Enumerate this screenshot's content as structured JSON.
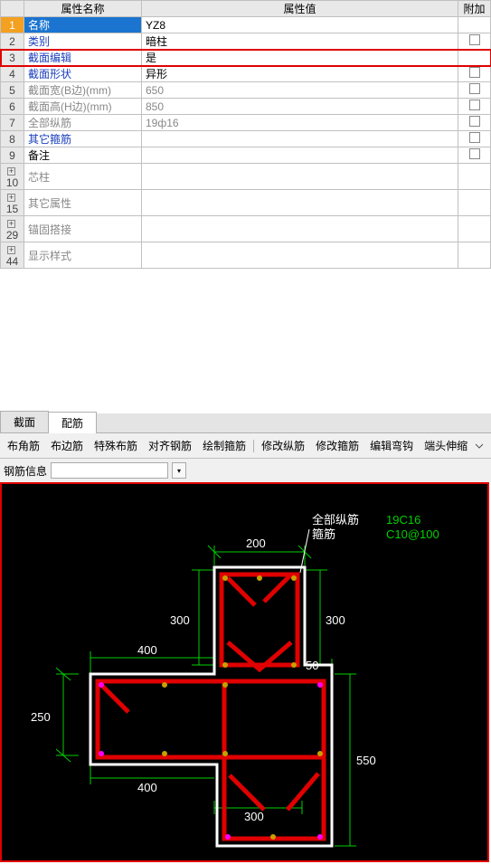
{
  "headers": {
    "name": "属性名称",
    "value": "属性值",
    "attach": "附加"
  },
  "rows": [
    {
      "n": "1",
      "sel": true,
      "name": "名称",
      "val": "YZ8",
      "att": "",
      "cls": ""
    },
    {
      "n": "2",
      "name": "类别",
      "val": "暗柱",
      "att": "chk",
      "cls": "bluefg"
    },
    {
      "n": "3",
      "name": "截面编辑",
      "val": "是",
      "att": "",
      "cls": "bluefg",
      "red": true
    },
    {
      "n": "4",
      "name": "截面形状",
      "val": "异形",
      "att": "chk",
      "cls": "bluefg"
    },
    {
      "n": "5",
      "name": "截面宽(B边)(mm)",
      "val": "650",
      "att": "chk",
      "cls": "grayfg"
    },
    {
      "n": "6",
      "name": "截面高(H边)(mm)",
      "val": "850",
      "att": "chk",
      "cls": "grayfg"
    },
    {
      "n": "7",
      "name": "全部纵筋",
      "val": "19ф16",
      "att": "chk",
      "cls": "grayfg"
    },
    {
      "n": "8",
      "name": "其它箍筋",
      "val": "",
      "att": "chk",
      "cls": "bluefg"
    },
    {
      "n": "9",
      "name": "备注",
      "val": "",
      "att": "chk",
      "cls": ""
    },
    {
      "n": "10",
      "exp": "+",
      "name": "芯柱",
      "val": "",
      "att": "",
      "cls": "grayfg"
    },
    {
      "n": "15",
      "exp": "+",
      "name": "其它属性",
      "val": "",
      "att": "",
      "cls": "grayfg"
    },
    {
      "n": "29",
      "exp": "+",
      "name": "锚固搭接",
      "val": "",
      "att": "",
      "cls": "grayfg"
    },
    {
      "n": "44",
      "exp": "+",
      "name": "显示样式",
      "val": "",
      "att": "",
      "cls": "grayfg"
    }
  ],
  "tabs": {
    "section": "截面",
    "rebar": "配筋"
  },
  "toolbar": {
    "t1": "布角筋",
    "t2": "布边筋",
    "t3": "特殊布筋",
    "t4": "对齐钢筋",
    "t5": "绘制箍筋",
    "t6": "修改纵筋",
    "t7": "修改箍筋",
    "t8": "编辑弯钩",
    "t9": "端头伸缩"
  },
  "infoLabel": "钢筋信息",
  "diagram": {
    "annot1": "全部纵筋",
    "annot2": "箍筋",
    "annot3": "19C16",
    "annot4": "C10@100",
    "d200": "200",
    "d300": "300",
    "d400": "400",
    "d250": "250",
    "d50": "50",
    "d550": "550"
  }
}
